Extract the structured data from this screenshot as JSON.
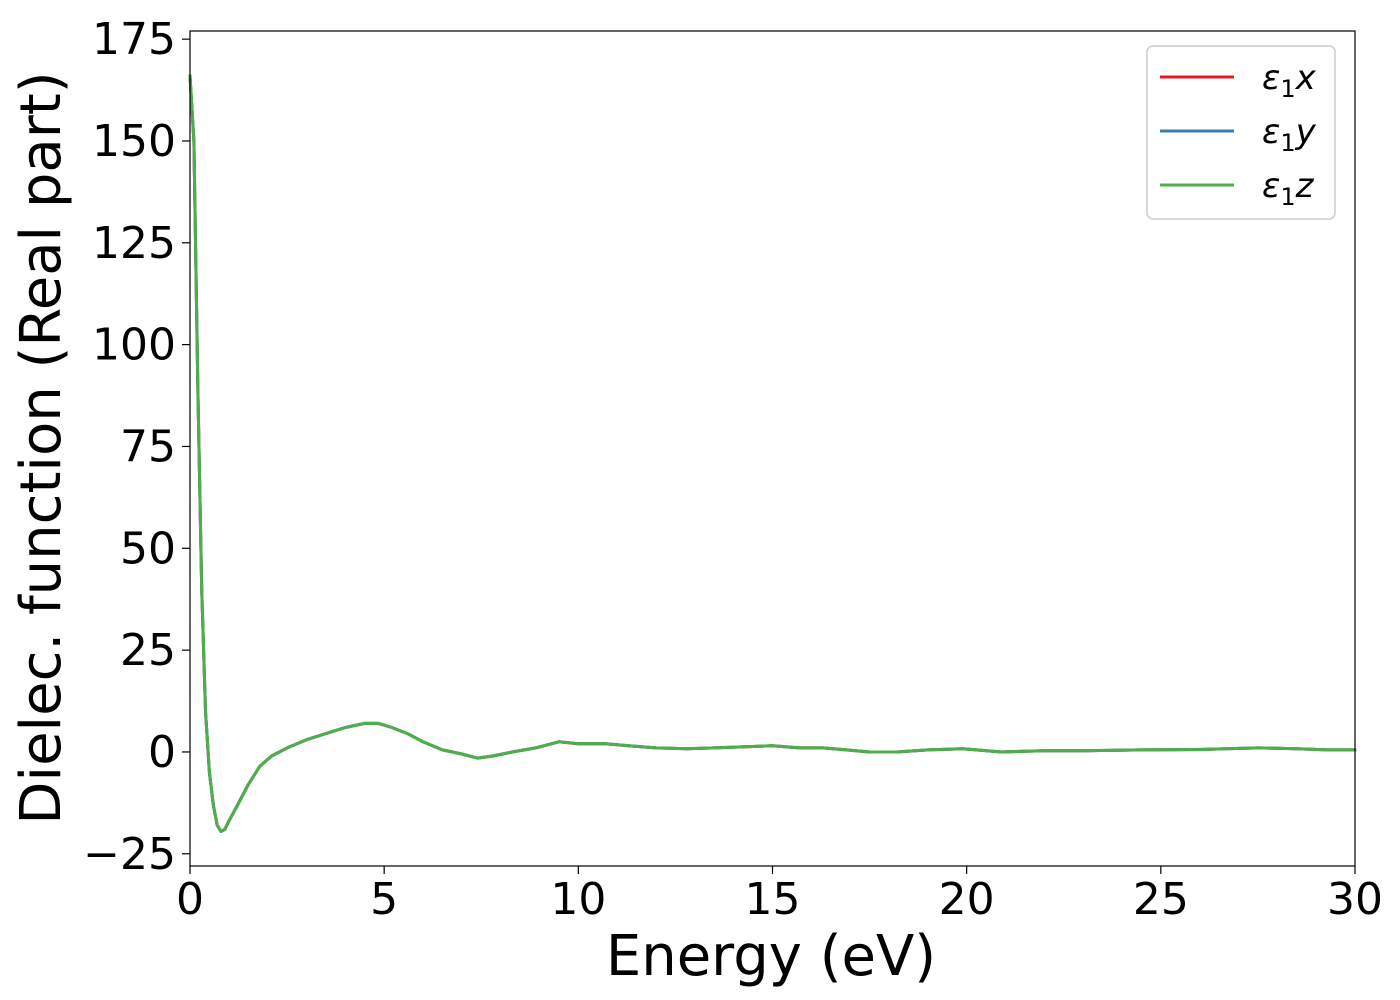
{
  "chart_data": {
    "type": "line",
    "title": "",
    "xlabel": "Energy (eV)",
    "ylabel": "Dielec. function (Real part)",
    "xlim": [
      0,
      30
    ],
    "ylim": [
      -28,
      177
    ],
    "xticks": [
      0,
      5,
      10,
      15,
      20,
      25,
      30
    ],
    "yticks": [
      -25,
      0,
      25,
      50,
      75,
      100,
      125,
      150,
      175
    ],
    "ytick_labels": [
      "−25",
      "0",
      "25",
      "50",
      "75",
      "100",
      "125",
      "150",
      "175"
    ],
    "grid": false,
    "legend_position": "top-right",
    "series": [
      {
        "name": "x",
        "name_prefix": "ε",
        "name_sub": "1",
        "color": "#e41a1c",
        "x": [
          0.0,
          0.1,
          0.2,
          0.3,
          0.4,
          0.5,
          0.6,
          0.7,
          0.8,
          0.9,
          1.0,
          1.2,
          1.5,
          1.8,
          2.1,
          2.5,
          3.0,
          3.5,
          4.0,
          4.5,
          4.85,
          5.2,
          5.6,
          6.0,
          6.5,
          7.0,
          7.4,
          7.8,
          8.3,
          8.9,
          9.5,
          10.0,
          10.7,
          11.3,
          12.0,
          12.8,
          13.5,
          14.3,
          15.0,
          15.7,
          16.3,
          16.9,
          17.5,
          18.2,
          19.0,
          19.9,
          20.9,
          22.0,
          23.0,
          24.5,
          26.0,
          27.5,
          28.5,
          29.3,
          30.0
        ],
        "y": [
          166,
          150,
          90,
          40,
          10,
          -5,
          -13,
          -18,
          -19.5,
          -19,
          -17,
          -13.5,
          -8,
          -3.5,
          -1,
          1,
          3,
          4.5,
          6,
          7,
          7,
          6,
          4.5,
          2.5,
          0.5,
          -0.5,
          -1.5,
          -1,
          0,
          1,
          2.5,
          2,
          2,
          1.5,
          1,
          0.8,
          1,
          1.3,
          1.5,
          1,
          1,
          0.5,
          0,
          0,
          0.5,
          0.8,
          0,
          0.3,
          0.3,
          0.5,
          0.6,
          1,
          0.8,
          0.5,
          0.5
        ]
      },
      {
        "name": "y",
        "name_prefix": "ε",
        "name_sub": "1",
        "color": "#377eb8",
        "x": [
          0.0,
          0.1,
          0.2,
          0.3,
          0.4,
          0.5,
          0.6,
          0.7,
          0.8,
          0.9,
          1.0,
          1.2,
          1.5,
          1.8,
          2.1,
          2.5,
          3.0,
          3.5,
          4.0,
          4.5,
          4.85,
          5.2,
          5.6,
          6.0,
          6.5,
          7.0,
          7.4,
          7.8,
          8.3,
          8.9,
          9.5,
          10.0,
          10.7,
          11.3,
          12.0,
          12.8,
          13.5,
          14.3,
          15.0,
          15.7,
          16.3,
          16.9,
          17.5,
          18.2,
          19.0,
          19.9,
          20.9,
          22.0,
          23.0,
          24.5,
          26.0,
          27.5,
          28.5,
          29.3,
          30.0
        ],
        "y": [
          166,
          150,
          90,
          40,
          10,
          -5,
          -13,
          -18,
          -19.5,
          -19,
          -17,
          -13.5,
          -8,
          -3.5,
          -1,
          1,
          3,
          4.5,
          6,
          7,
          7,
          6,
          4.5,
          2.5,
          0.5,
          -0.5,
          -1.5,
          -1,
          0,
          1,
          2.5,
          2,
          2,
          1.5,
          1,
          0.8,
          1,
          1.3,
          1.5,
          1,
          1,
          0.5,
          0,
          0,
          0.5,
          0.8,
          0,
          0.3,
          0.3,
          0.5,
          0.6,
          1,
          0.8,
          0.5,
          0.5
        ]
      },
      {
        "name": "z",
        "name_prefix": "ε",
        "name_sub": "1",
        "color": "#4daf4a",
        "x": [
          0.0,
          0.1,
          0.2,
          0.3,
          0.4,
          0.5,
          0.6,
          0.7,
          0.8,
          0.9,
          1.0,
          1.2,
          1.5,
          1.8,
          2.1,
          2.5,
          3.0,
          3.5,
          4.0,
          4.5,
          4.85,
          5.2,
          5.6,
          6.0,
          6.5,
          7.0,
          7.4,
          7.8,
          8.3,
          8.9,
          9.5,
          10.0,
          10.7,
          11.3,
          12.0,
          12.8,
          13.5,
          14.3,
          15.0,
          15.7,
          16.3,
          16.9,
          17.5,
          18.2,
          19.0,
          19.9,
          20.9,
          22.0,
          23.0,
          24.5,
          26.0,
          27.5,
          28.5,
          29.3,
          30.0
        ],
        "y": [
          166,
          150,
          90,
          40,
          10,
          -5,
          -13,
          -18,
          -19.5,
          -19,
          -17,
          -13.5,
          -8,
          -3.5,
          -1,
          1,
          3,
          4.5,
          6,
          7,
          7,
          6,
          4.5,
          2.5,
          0.5,
          -0.5,
          -1.5,
          -1,
          0,
          1,
          2.5,
          2,
          2,
          1.5,
          1,
          0.8,
          1,
          1.3,
          1.5,
          1,
          1,
          0.5,
          0,
          0,
          0.5,
          0.8,
          0,
          0.3,
          0.3,
          0.5,
          0.6,
          1,
          0.8,
          0.5,
          0.5
        ]
      }
    ]
  }
}
